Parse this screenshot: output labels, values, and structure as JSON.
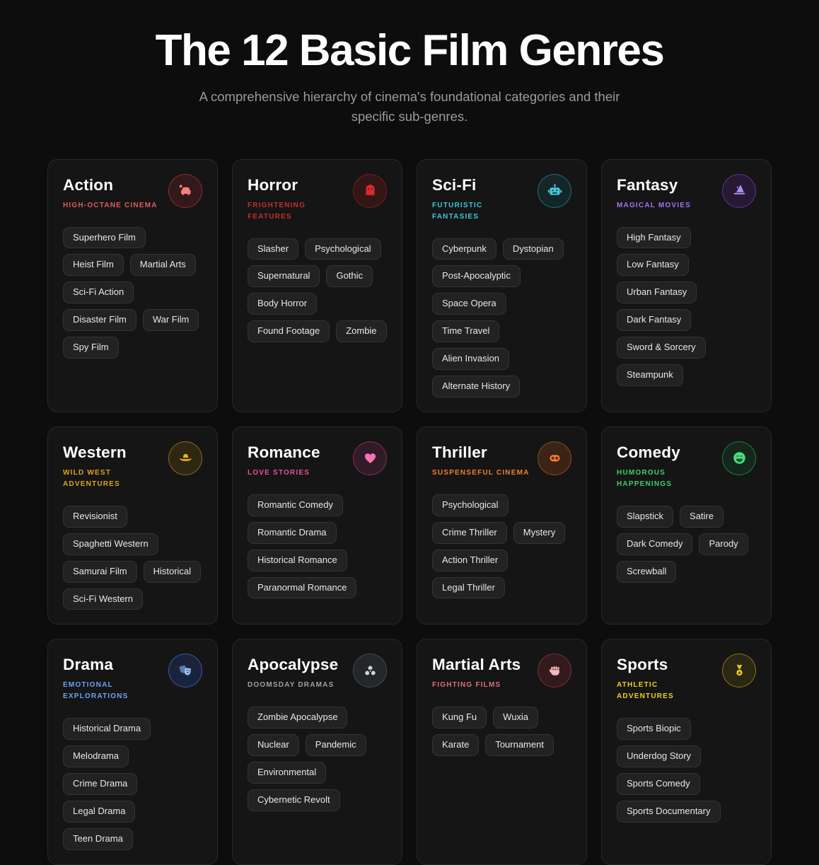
{
  "header": {
    "title": "The 12 Basic Film Genres",
    "subtitle": "A comprehensive hierarchy of cinema's foundational categories and their specific sub-genres."
  },
  "theme": {
    "page_bg": "#0d0d0d",
    "card_bg": "#151515",
    "card_border": "#282828",
    "tag_bg": "#222223",
    "tag_border": "#343436",
    "tag_text": "#e8e8e8",
    "title_color": "#ffffff",
    "subtitle_color": "#9b9b9b"
  },
  "cards": [
    {
      "title": "Action",
      "tagline": "HIGH-OCTANE CINEMA",
      "icon": "car-crash-icon",
      "accent": "#e15b5b",
      "icon_color": "#f28080",
      "badge_bg": "rgba(214,50,55,0.16)",
      "badge_border": "rgba(220,70,70,0.5)",
      "tags": [
        "Superhero Film",
        "Heist Film",
        "Martial Arts",
        "Sci-Fi Action",
        "Disaster Film",
        "War Film",
        "Spy Film"
      ]
    },
    {
      "title": "Horror",
      "tagline": "FRIGHTENING FEATURES",
      "icon": "ghost-icon",
      "accent": "#c62d2d",
      "icon_color": "#d92b2b",
      "badge_bg": "rgba(185,28,28,0.18)",
      "badge_border": "rgba(190,30,30,0.55)",
      "tags": [
        "Slasher",
        "Psychological",
        "Supernatural",
        "Gothic",
        "Body Horror",
        "Found Footage",
        "Zombie"
      ]
    },
    {
      "title": "Sci-Fi",
      "tagline": "FUTURISTIC FANTASIES",
      "icon": "robot-icon",
      "accent": "#3fc6e0",
      "icon_color": "#49c9df",
      "badge_bg": "rgba(34,200,230,0.10)",
      "badge_border": "rgba(40,200,225,0.45)",
      "tags": [
        "Cyberpunk",
        "Dystopian",
        "Post-Apocalyptic",
        "Space Opera",
        "Time Travel",
        "Alien Invasion",
        "Alternate History"
      ]
    },
    {
      "title": "Fantasy",
      "tagline": "MAGICAL MOVIES",
      "icon": "wizard-hat-icon",
      "accent": "#a472f2",
      "icon_color": "#b48cf7",
      "badge_bg": "rgba(147,51,234,0.14)",
      "badge_border": "rgba(150,70,230,0.55)",
      "tags": [
        "High Fantasy",
        "Low Fantasy",
        "Urban Fantasy",
        "Dark Fantasy",
        "Sword & Sorcery",
        "Steampunk"
      ]
    },
    {
      "title": "Western",
      "tagline": "WILD WEST ADVENTURES",
      "icon": "cowboy-hat-icon",
      "accent": "#e0a418",
      "icon_color": "#eab308",
      "badge_bg": "rgba(234,179,8,0.12)",
      "badge_border": "rgba(200,150,25,0.6)",
      "tags": [
        "Revisionist",
        "Spaghetti Western",
        "Samurai Film",
        "Historical",
        "Sci-Fi Western"
      ]
    },
    {
      "title": "Romance",
      "tagline": "LOVE STORIES",
      "icon": "heart-icon",
      "accent": "#ea4f99",
      "icon_color": "#f472b6",
      "badge_bg": "rgba(236,72,153,0.13)",
      "badge_border": "rgba(236,72,153,0.45)",
      "tags": [
        "Romantic Comedy",
        "Romantic Drama",
        "Historical Romance",
        "Paranormal Romance"
      ]
    },
    {
      "title": "Thriller",
      "tagline": "SUSPENSEFUL CINEMA",
      "icon": "mask-icon",
      "accent": "#f0802f",
      "icon_color": "#f9822e",
      "badge_bg": "rgba(249,115,22,0.17)",
      "badge_border": "rgba(249,120,30,0.45)",
      "tags": [
        "Psychological",
        "Crime Thriller",
        "Mystery",
        "Action Thriller",
        "Legal Thriller"
      ]
    },
    {
      "title": "Comedy",
      "tagline": "HUMOROUS HAPPENINGS",
      "icon": "laughing-face-icon",
      "accent": "#3bcf6e",
      "icon_color": "#4ade80",
      "badge_bg": "rgba(34,197,94,0.10)",
      "badge_border": "rgba(40,200,100,0.55)",
      "tags": [
        "Slapstick",
        "Satire",
        "Dark Comedy",
        "Parody",
        "Screwball"
      ]
    },
    {
      "title": "Drama",
      "tagline": "EMOTIONAL EXPLORATIONS",
      "icon": "theater-masks-icon",
      "accent": "#6ba3f5",
      "icon_color": "#9cc3f8",
      "badge_bg": "rgba(45,100,220,0.20)",
      "badge_border": "rgba(90,140,240,0.5)",
      "tags": [
        "Historical Drama",
        "Melodrama",
        "Crime Drama",
        "Legal Drama",
        "Teen Drama"
      ]
    },
    {
      "title": "Apocalypse",
      "tagline": "DOOMSDAY DRAMAS",
      "icon": "biohazard-icon",
      "accent": "#9aa1aa",
      "icon_color": "#cfd6de",
      "badge_bg": "rgba(148,163,184,0.12)",
      "badge_border": "rgba(148,163,184,0.3)",
      "tags": [
        "Zombie Apocalypse",
        "Nuclear",
        "Pandemic",
        "Environmental",
        "Cybernetic Revolt"
      ]
    },
    {
      "title": "Martial Arts",
      "tagline": "FIGHTING FILMS",
      "icon": "fist-icon",
      "accent": "#dd6f74",
      "icon_color": "#f8b9bc",
      "badge_bg": "rgba(200,60,70,0.17)",
      "badge_border": "rgba(210,85,95,0.4)",
      "tags": [
        "Kung Fu",
        "Wuxia",
        "Karate",
        "Tournament"
      ]
    },
    {
      "title": "Sports",
      "tagline": "ATHLETIC ADVENTURES",
      "icon": "medal-icon",
      "accent": "#ecd023",
      "icon_color": "#f2cf1d",
      "badge_bg": "rgba(234,204,21,0.10)",
      "badge_border": "rgba(212,178,25,0.55)",
      "tags": [
        "Sports Biopic",
        "Underdog Story",
        "Sports Comedy",
        "Sports Documentary"
      ]
    }
  ]
}
